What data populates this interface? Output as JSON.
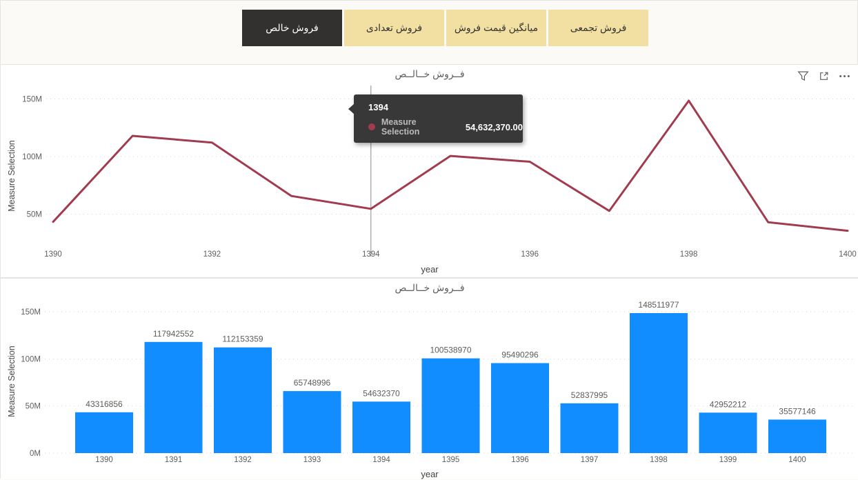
{
  "slicer": {
    "buttons": [
      {
        "label": "فروش خالص",
        "selected": true
      },
      {
        "label": "فروش تعدادی",
        "selected": false
      },
      {
        "label": "میانگین قیمت فروش",
        "selected": false
      },
      {
        "label": "فروش تجمعی",
        "selected": false
      }
    ]
  },
  "visual_header": {
    "icons": [
      "filter-icon",
      "focus-mode-icon",
      "more-options-icon"
    ]
  },
  "tooltip": {
    "title": "1394",
    "year": 1394,
    "series_name": "Measure Selection",
    "value": "54,632,370.00"
  },
  "colors": {
    "page_bg": "#FBFAF6",
    "visual_bg": "#FFFFFF",
    "button_selected_bg": "#323130",
    "button_selected_text": "#FFFFFF",
    "button_bg": "#F2DFA2",
    "button_text": "#323130",
    "line_series": "#A13B4F",
    "bar_series": "#118DFF",
    "axis_text": "#605E5C",
    "grid": "#D8D6D3",
    "tooltip_bg": "#383838",
    "tooltip_text": "#FFFFFF",
    "tooltip_muted": "#BDBBB9"
  },
  "chart_data": [
    {
      "type": "line",
      "title": "فــروش خــالــص",
      "xlabel": "year",
      "ylabel": "Measure Selection",
      "x": [
        1390,
        1391,
        1392,
        1393,
        1394,
        1395,
        1396,
        1397,
        1398,
        1399,
        1400
      ],
      "series": [
        {
          "name": "Measure Selection",
          "values": [
            43316856,
            117942552,
            112153359,
            65748996,
            54632370,
            100538970,
            95490296,
            52837995,
            148511977,
            42952212,
            35577146
          ]
        }
      ],
      "x_ticks": [
        1390,
        1392,
        1394,
        1396,
        1398,
        1400
      ],
      "y_axis": [
        {
          "label": "150M",
          "value": 150000000
        },
        {
          "label": "100M",
          "value": 100000000
        },
        {
          "label": "50M",
          "value": 50000000
        }
      ],
      "grid": true,
      "legend": "none",
      "crosshair_year": 1394
    },
    {
      "type": "bar",
      "title": "فــروش خــالــص",
      "xlabel": "year",
      "ylabel": "Measure Selection",
      "categories": [
        "1390",
        "1391",
        "1392",
        "1393",
        "1394",
        "1395",
        "1396",
        "1397",
        "1398",
        "1399",
        "1400"
      ],
      "values": [
        43316856,
        117942552,
        112153359,
        65748996,
        54632370,
        100538970,
        95490296,
        52837995,
        148511977,
        42952212,
        35577146
      ],
      "data_labels": [
        "43316856",
        "117942552",
        "112153359",
        "65748996",
        "54632370",
        "100538970",
        "95490296",
        "52837995",
        "148511977",
        "42952212",
        "35577146"
      ],
      "y_axis": [
        {
          "label": "150M",
          "value": 150000000
        },
        {
          "label": "100M",
          "value": 100000000
        },
        {
          "label": "50M",
          "value": 50000000
        },
        {
          "label": "0M",
          "value": 0
        }
      ],
      "ylim": [
        0,
        150000000
      ],
      "grid": true,
      "legend": "none"
    }
  ]
}
